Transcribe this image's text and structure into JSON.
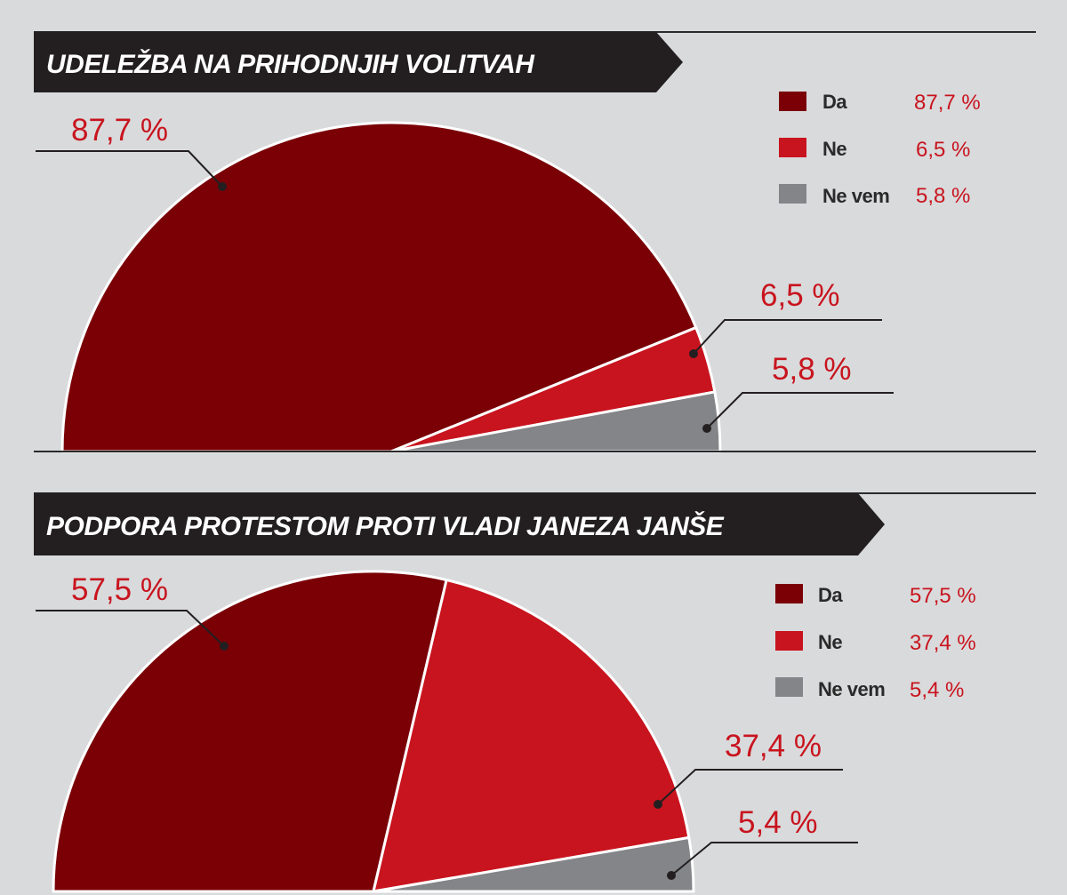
{
  "colors": {
    "da": "#7a0006",
    "ne": "#c8141e",
    "ne_vem": "#838588",
    "title_bg": "#231f20",
    "label": "#c8141e",
    "background": "#d9dadc"
  },
  "chart_data": [
    {
      "type": "pie",
      "variant": "semicircle",
      "title": "UDELEŽBA NA PRIHODNJIH VOLITVAH",
      "categories": [
        "Da",
        "Ne",
        "Ne vem"
      ],
      "values": [
        87.7,
        6.5,
        5.8
      ],
      "labels": [
        "87,7 %",
        "6,5 %",
        "5,8 %"
      ],
      "legend": [
        {
          "name": "Da",
          "value": "87,7 %",
          "color": "#7a0006"
        },
        {
          "name": "Ne",
          "value": "6,5 %",
          "color": "#c8141e"
        },
        {
          "name": "Ne vem",
          "value": "5,8 %",
          "color": "#838588"
        }
      ],
      "legend_position": "top-right"
    },
    {
      "type": "pie",
      "variant": "semicircle",
      "title": "PODPORA PROTESTOM PROTI VLADI JANEZA JANŠE",
      "categories": [
        "Da",
        "Ne",
        "Ne vem"
      ],
      "values": [
        57.5,
        37.4,
        5.4
      ],
      "labels": [
        "57,5 %",
        "37,4 %",
        "5,4 %"
      ],
      "legend": [
        {
          "name": "Da",
          "value": "57,5 %",
          "color": "#7a0006"
        },
        {
          "name": "Ne",
          "value": "37,4 %",
          "color": "#c8141e"
        },
        {
          "name": "Ne vem",
          "value": "5,4 %",
          "color": "#838588"
        }
      ],
      "legend_position": "top-right"
    }
  ]
}
